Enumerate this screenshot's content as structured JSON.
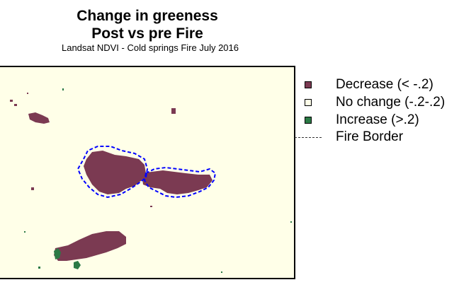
{
  "title": {
    "line1": "Change in greeness",
    "line2": "Post vs pre Fire"
  },
  "subtitle": "Landsat NDVI - Cold springs Fire July 2016",
  "colors": {
    "decrease": "#7b3a52",
    "no_change": "#ffffe8",
    "increase": "#2b7a45",
    "fire_border": "#0000ff"
  },
  "legend": {
    "decrease": "Decrease (< -.2)",
    "no_change": "No change (-.2-.2)",
    "increase": "Increase (>.2)",
    "fire_border": "Fire Border"
  }
}
